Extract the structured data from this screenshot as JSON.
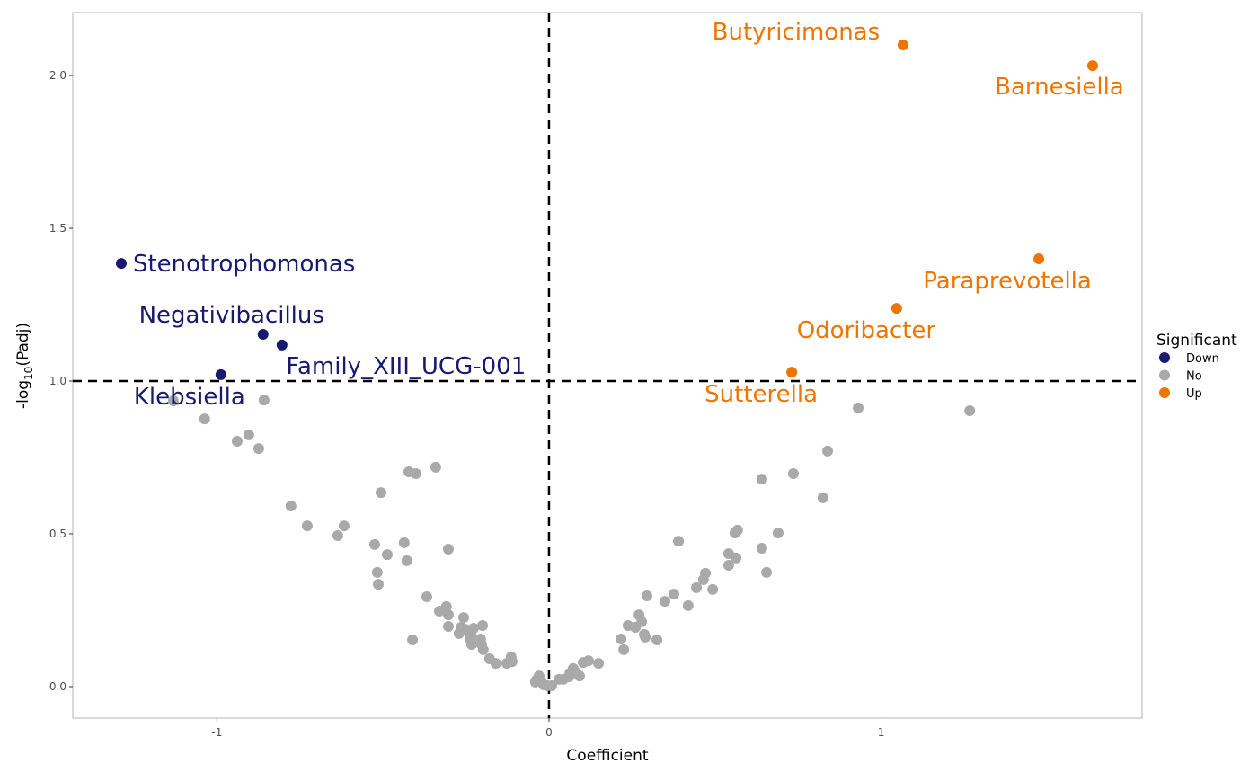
{
  "chart_data": {
    "type": "scatter",
    "title": "",
    "xlabel": "Coefficient",
    "ylabel": "-log10(Padj)",
    "ylabel_main": "-log",
    "ylabel_sub": "10",
    "ylabel_tail": "(Padj)",
    "xlim": [
      -1.434,
      1.786
    ],
    "ylim": [
      -0.103,
      2.206
    ],
    "x_ticks": [
      -1,
      0,
      1
    ],
    "x_tick_labels": [
      "-1",
      "0",
      "1"
    ],
    "y_ticks": [
      0,
      0.5,
      1,
      1.5,
      2
    ],
    "y_tick_labels": [
      "0.0",
      "0.5",
      "1.0",
      "1.5",
      "2.0"
    ],
    "grid": false,
    "reference_lines": {
      "x": 0,
      "y": 1
    },
    "legend": {
      "title": "Significant",
      "placement": "right",
      "entries": [
        {
          "name": "Down",
          "color": "#191970"
        },
        {
          "name": "No",
          "color": "#a9a9a9"
        },
        {
          "name": "Up",
          "color": "#ee7600"
        }
      ]
    },
    "labeled_points": [
      {
        "label": "Stenotrophomonas",
        "x": -1.288,
        "y": 1.385,
        "group": "Down"
      },
      {
        "label": "Negativibacillus",
        "x": -0.861,
        "y": 1.153,
        "group": "Down"
      },
      {
        "label": "Family_XIII_UCG-001",
        "x": -0.804,
        "y": 1.118,
        "group": "Down"
      },
      {
        "label": "Klebsiella",
        "x": -0.988,
        "y": 1.021,
        "group": "Down"
      },
      {
        "label": "Butyricimonas",
        "x": 1.066,
        "y": 2.1,
        "group": "Up"
      },
      {
        "label": "Barnesiella",
        "x": 1.637,
        "y": 2.032,
        "group": "Up"
      },
      {
        "label": "Paraprevotella",
        "x": 1.475,
        "y": 1.4,
        "group": "Up"
      },
      {
        "label": "Odoribacter",
        "x": 1.047,
        "y": 1.238,
        "group": "Up"
      },
      {
        "label": "Sutterella",
        "x": 0.731,
        "y": 1.029,
        "group": "Up"
      }
    ],
    "other_points": [
      [
        -1.131,
        0.935
      ],
      [
        -0.858,
        0.938
      ],
      [
        -1.037,
        0.876
      ],
      [
        -0.904,
        0.824
      ],
      [
        -0.939,
        0.803
      ],
      [
        -0.874,
        0.779
      ],
      [
        -0.777,
        0.591
      ],
      [
        -0.728,
        0.526
      ],
      [
        -0.617,
        0.526
      ],
      [
        -0.636,
        0.494
      ],
      [
        -0.525,
        0.465
      ],
      [
        -0.487,
        0.432
      ],
      [
        -0.517,
        0.374
      ],
      [
        -0.514,
        0.335
      ],
      [
        -0.506,
        0.635
      ],
      [
        -0.436,
        0.471
      ],
      [
        -0.428,
        0.412
      ],
      [
        -0.422,
        0.703
      ],
      [
        -0.401,
        0.697
      ],
      [
        -0.341,
        0.718
      ],
      [
        -0.411,
        0.153
      ],
      [
        -0.368,
        0.294
      ],
      [
        -0.303,
        0.45
      ],
      [
        -0.33,
        0.247
      ],
      [
        -0.309,
        0.262
      ],
      [
        -0.303,
        0.235
      ],
      [
        -0.303,
        0.197
      ],
      [
        -0.257,
        0.226
      ],
      [
        -0.265,
        0.194
      ],
      [
        -0.252,
        0.188
      ],
      [
        -0.271,
        0.174
      ],
      [
        -0.235,
        0.171
      ],
      [
        -0.238,
        0.156
      ],
      [
        -0.227,
        0.191
      ],
      [
        -0.233,
        0.138
      ],
      [
        -0.2,
        0.2
      ],
      [
        -0.206,
        0.156
      ],
      [
        -0.203,
        0.138
      ],
      [
        -0.198,
        0.121
      ],
      [
        -0.179,
        0.091
      ],
      [
        -0.16,
        0.076
      ],
      [
        -0.127,
        0.076
      ],
      [
        -0.114,
        0.097
      ],
      [
        -0.111,
        0.082
      ],
      [
        -0.038,
        0.021
      ],
      [
        -0.03,
        0.035
      ],
      [
        -0.024,
        0.018
      ],
      [
        -0.016,
        0.006
      ],
      [
        -0.005,
        0.003
      ],
      [
        0.008,
        0.003
      ],
      [
        -0.041,
        0.015
      ],
      [
        0.03,
        0.024
      ],
      [
        0.043,
        0.024
      ],
      [
        0.06,
        0.032
      ],
      [
        0.063,
        0.044
      ],
      [
        0.073,
        0.059
      ],
      [
        0.081,
        0.047
      ],
      [
        0.092,
        0.035
      ],
      [
        0.103,
        0.079
      ],
      [
        0.119,
        0.085
      ],
      [
        0.149,
        0.076
      ],
      [
        0.217,
        0.156
      ],
      [
        0.225,
        0.121
      ],
      [
        0.238,
        0.2
      ],
      [
        0.26,
        0.194
      ],
      [
        0.271,
        0.235
      ],
      [
        0.279,
        0.212
      ],
      [
        0.287,
        0.171
      ],
      [
        0.29,
        0.162
      ],
      [
        0.295,
        0.297
      ],
      [
        0.325,
        0.153
      ],
      [
        0.349,
        0.279
      ],
      [
        0.376,
        0.303
      ],
      [
        0.39,
        0.476
      ],
      [
        0.419,
        0.265
      ],
      [
        0.444,
        0.324
      ],
      [
        0.465,
        0.35
      ],
      [
        0.471,
        0.371
      ],
      [
        0.493,
        0.318
      ],
      [
        0.541,
        0.435
      ],
      [
        0.541,
        0.397
      ],
      [
        0.56,
        0.503
      ],
      [
        0.568,
        0.512
      ],
      [
        0.563,
        0.421
      ],
      [
        0.641,
        0.453
      ],
      [
        0.641,
        0.679
      ],
      [
        0.655,
        0.374
      ],
      [
        0.69,
        0.503
      ],
      [
        0.736,
        0.697
      ],
      [
        0.825,
        0.618
      ],
      [
        0.839,
        0.771
      ],
      [
        0.931,
        0.912
      ],
      [
        1.267,
        0.903
      ]
    ]
  }
}
